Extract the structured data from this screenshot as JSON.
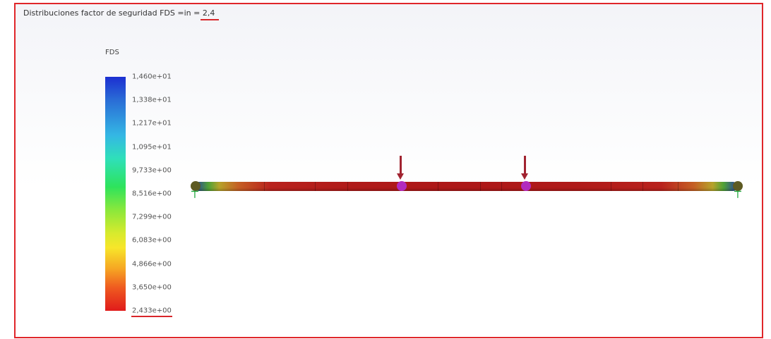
{
  "plot": {
    "title_prefix": "Distribuciones factor de seguridad FDS =in =",
    "title_value": "2,4",
    "legend_label": "FDS",
    "ticks": [
      "1,460e+01",
      "1,338e+01",
      "1,217e+01",
      "1,095e+01",
      "9,733e+00",
      "8,516e+00",
      "7,299e+00",
      "6,083e+00",
      "4,866e+00",
      "3,650e+00",
      "2,433e+00"
    ]
  },
  "colors": {
    "frame_border": "#e0262a",
    "beam_max_stress": "#b01a19",
    "load_node": "#b22bbf",
    "support_node": "#5d5a22",
    "fixture": "#1da73b"
  },
  "icons": {
    "load": "arrow-down-icon",
    "support": "fixture-icon"
  }
}
